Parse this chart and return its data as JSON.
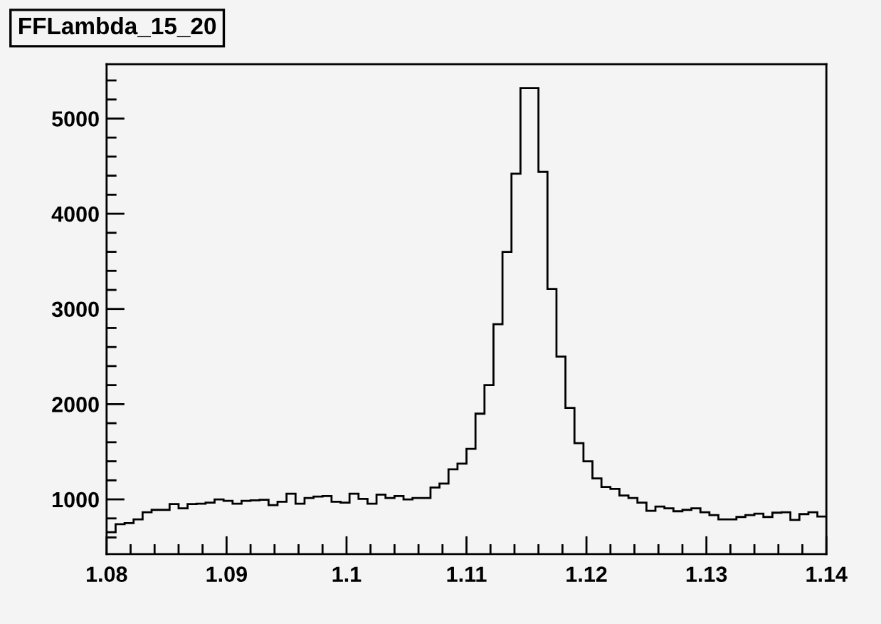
{
  "chart_data": {
    "type": "histogram",
    "title": "FFLambda_15_20",
    "bins": [
      1.08,
      1.08075,
      1.0815,
      1.08225,
      1.083,
      1.08375,
      1.0845,
      1.08525,
      1.086,
      1.08675,
      1.0875,
      1.08825,
      1.089,
      1.08975,
      1.0905,
      1.09125,
      1.092,
      1.09275,
      1.0935,
      1.09425,
      1.095,
      1.09575,
      1.0965,
      1.09725,
      1.098,
      1.09875,
      1.0995,
      1.10025,
      1.101,
      1.10175,
      1.1025,
      1.10325,
      1.104,
      1.10475,
      1.1055,
      1.10625,
      1.107,
      1.10775,
      1.1085,
      1.10925,
      1.11,
      1.11075,
      1.1115,
      1.11225,
      1.113,
      1.11375,
      1.1145,
      1.11525,
      1.116,
      1.11675,
      1.1175,
      1.11825,
      1.119,
      1.11975,
      1.1205,
      1.12125,
      1.122,
      1.12275,
      1.1235,
      1.12425,
      1.125,
      1.12575,
      1.1265,
      1.12725,
      1.128,
      1.12875,
      1.1295,
      1.13025,
      1.131,
      1.13175,
      1.1325,
      1.13325,
      1.134,
      1.13475,
      1.1355,
      1.13625,
      1.137,
      1.13775,
      1.1385,
      1.13925,
      1.14
    ],
    "values": [
      655,
      740,
      750,
      790,
      865,
      890,
      890,
      950,
      905,
      950,
      955,
      965,
      1000,
      985,
      955,
      985,
      990,
      995,
      940,
      975,
      1060,
      955,
      1015,
      1030,
      1035,
      975,
      965,
      1060,
      1005,
      955,
      1050,
      1015,
      1035,
      1000,
      1015,
      1015,
      1125,
      1165,
      1315,
      1375,
      1530,
      1900,
      2200,
      2840,
      3600,
      4420,
      5320,
      5320,
      4440,
      3210,
      2500,
      1960,
      1590,
      1400,
      1220,
      1130,
      1110,
      1040,
      1015,
      965,
      880,
      925,
      905,
      875,
      890,
      905,
      865,
      835,
      790,
      790,
      815,
      835,
      850,
      815,
      860,
      865,
      785,
      845,
      865,
      820
    ],
    "color": "#000000",
    "xlim": [
      1.08,
      1.14
    ],
    "xticks": [
      {
        "value": 1.08,
        "label": "1.08"
      },
      {
        "value": 1.09,
        "label": "1.09"
      },
      {
        "value": 1.1,
        "label": "1.1"
      },
      {
        "value": 1.11,
        "label": "1.11"
      },
      {
        "value": 1.12,
        "label": "1.12"
      },
      {
        "value": 1.13,
        "label": "1.13"
      },
      {
        "value": 1.14,
        "label": "1.14"
      }
    ],
    "ylim": [
      425,
      5570
    ],
    "yticks": [
      1000,
      2000,
      3000,
      4000,
      5000
    ],
    "grid": false
  }
}
